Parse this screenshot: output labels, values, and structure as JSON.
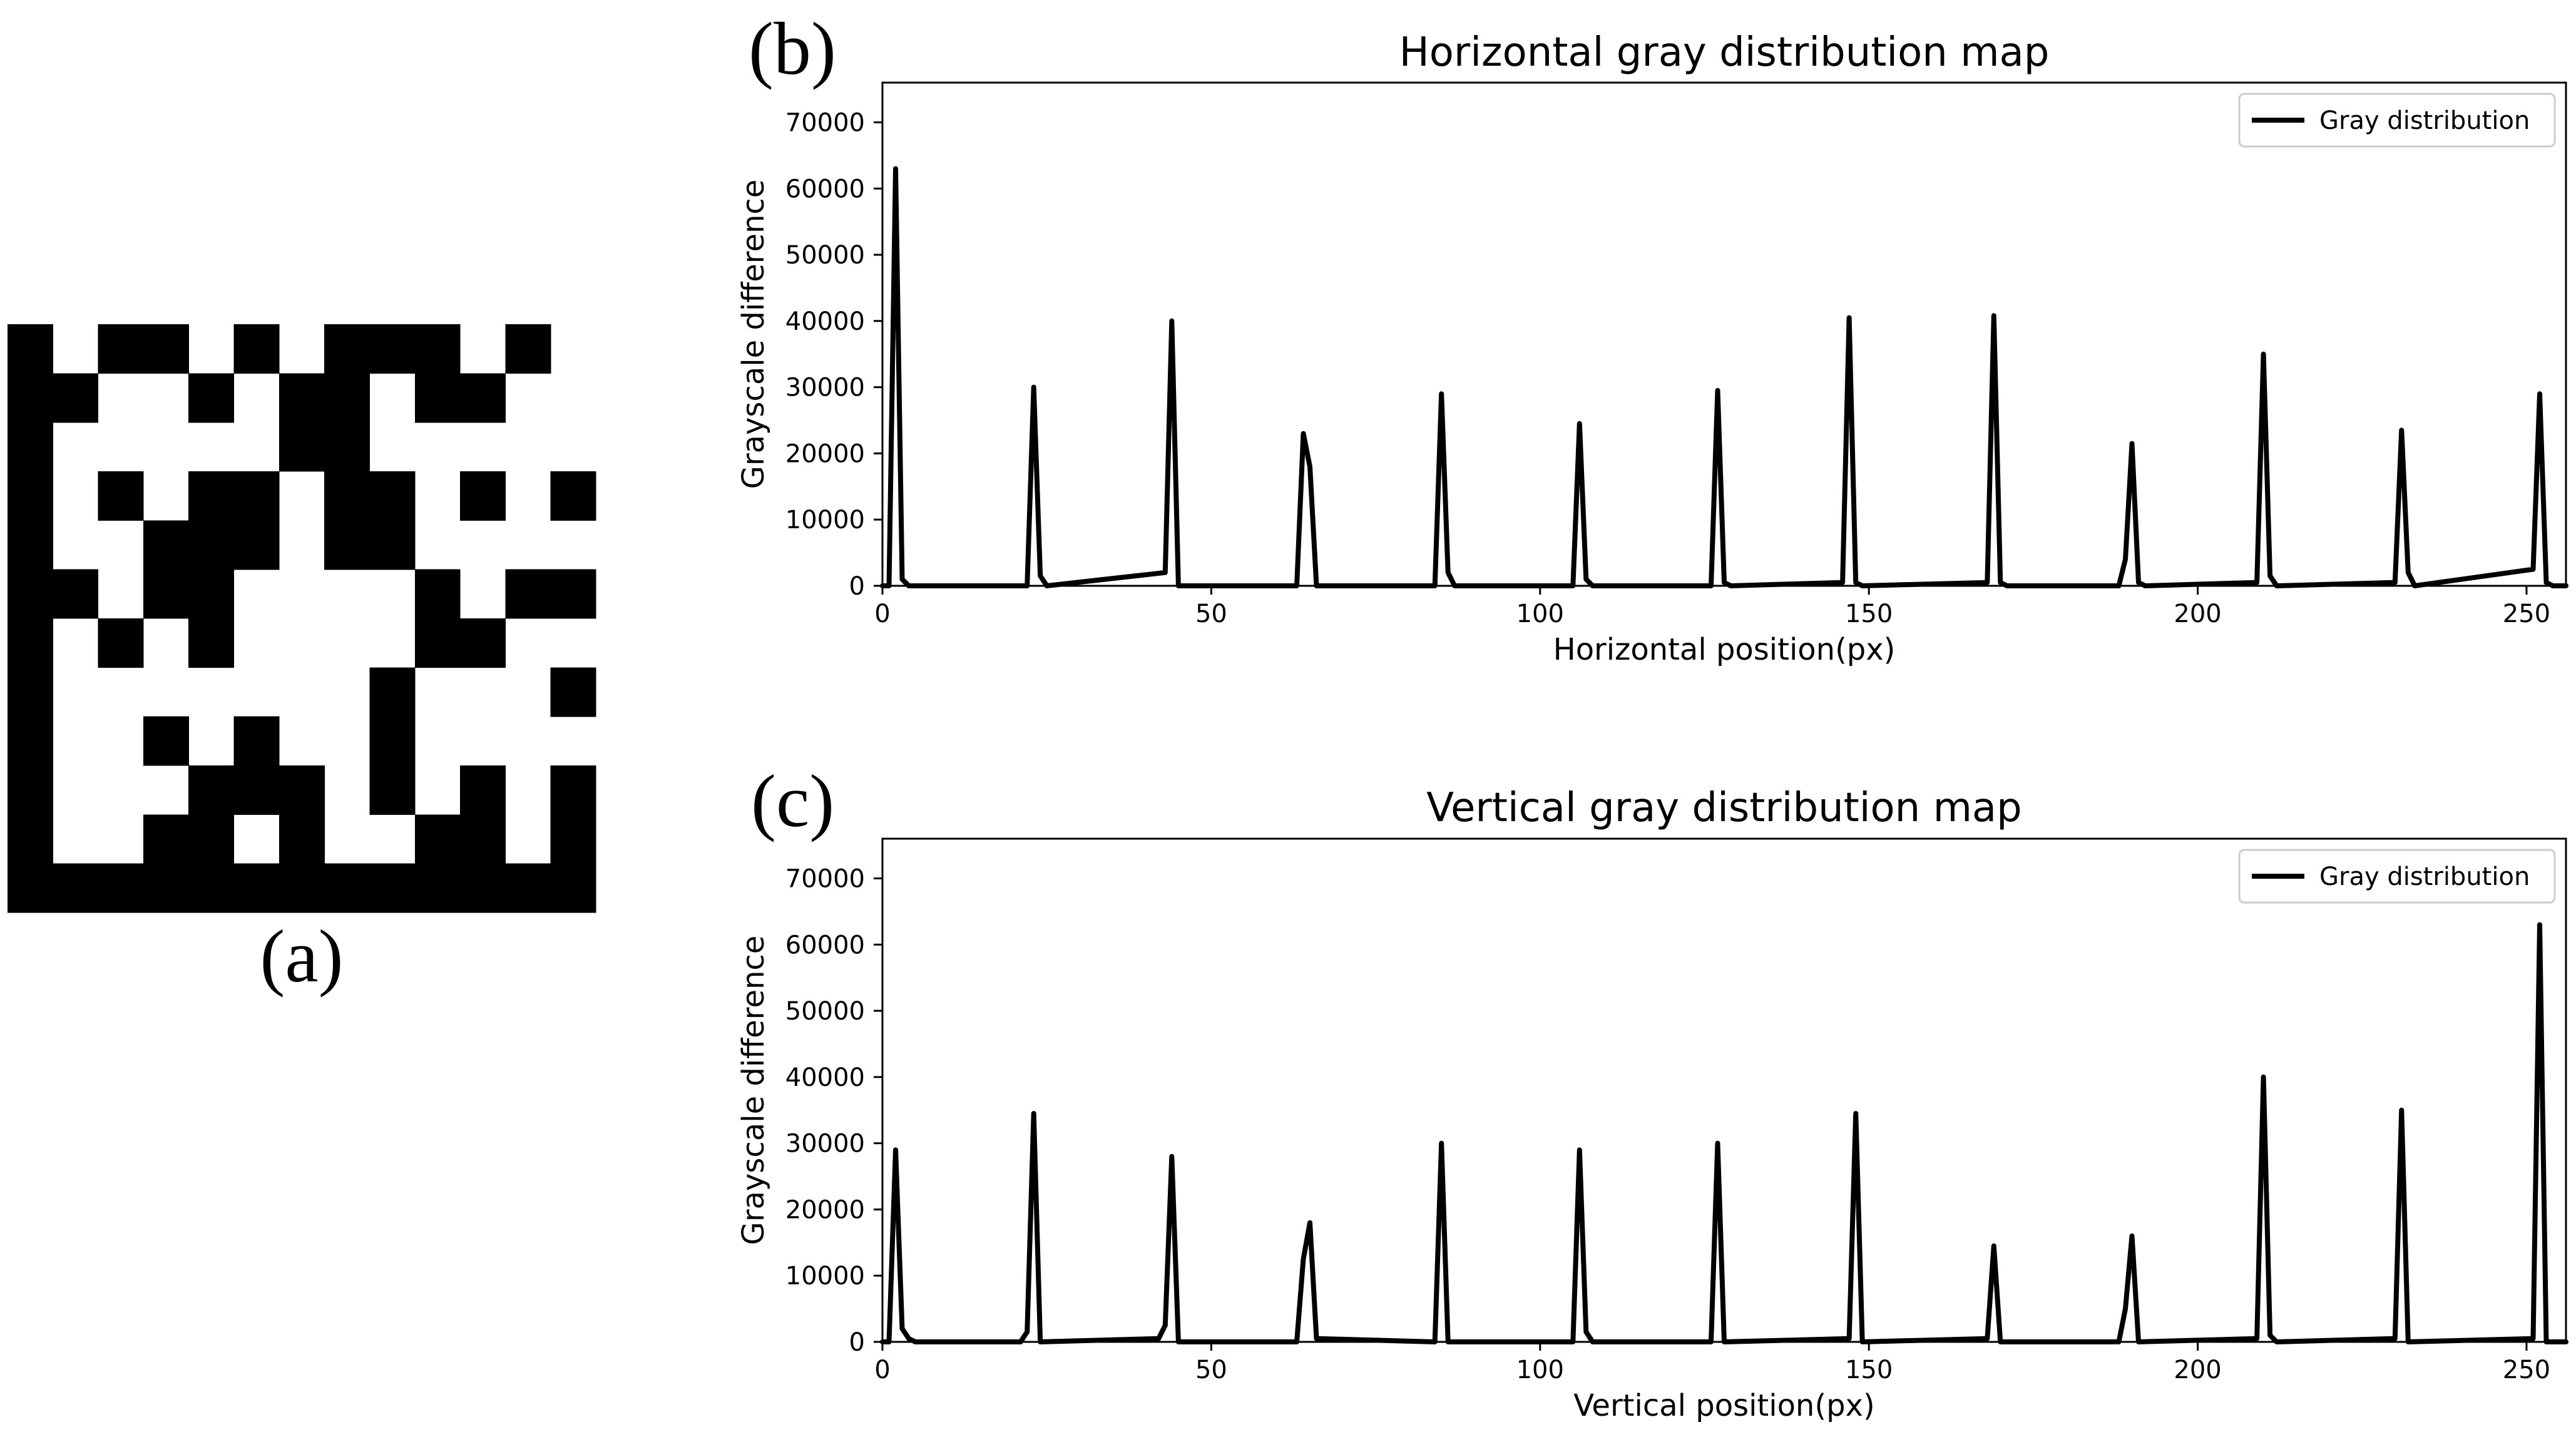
{
  "panels": {
    "a_label": "(a)",
    "b_label": "(b)",
    "c_label": "(c)"
  },
  "matrix_code": {
    "rows": [
      "1011010111010",
      "1100101101100",
      "1000001100000",
      "1010110110101",
      "1001110110000",
      "1101100001011",
      "1010100001100",
      "1000000010001",
      "1001010010000",
      "1000111010101",
      "1001101001101",
      "1111111111111"
    ]
  },
  "colors": {
    "ink": "#000000",
    "background": "#ffffff"
  },
  "chart_data": [
    {
      "type": "line",
      "title": "Horizontal gray distribution map",
      "xlabel": "Horizontal position(px)",
      "ylabel": "Grayscale difference",
      "xlim": [
        0,
        256
      ],
      "ylim": [
        0,
        76000
      ],
      "xticks": [
        0,
        50,
        100,
        150,
        200,
        250
      ],
      "yticks": [
        0,
        10000,
        20000,
        30000,
        40000,
        50000,
        60000,
        70000
      ],
      "grid": false,
      "legend_position": "top-right",
      "series": [
        {
          "name": "Gray distribution",
          "color": "#000000",
          "x": [
            0,
            1,
            2,
            3,
            4,
            22,
            23,
            24,
            25,
            43,
            44,
            45,
            46,
            63,
            64,
            65,
            66,
            84,
            85,
            86,
            87,
            105,
            106,
            107,
            108,
            126,
            127,
            128,
            129,
            146,
            147,
            148,
            149,
            168,
            169,
            170,
            171,
            188,
            189,
            190,
            191,
            192,
            209,
            210,
            211,
            212,
            230,
            231,
            232,
            233,
            251,
            252,
            253,
            254,
            256
          ],
          "y": [
            0,
            0,
            63000,
            1000,
            0,
            0,
            30000,
            1500,
            0,
            2000,
            40000,
            0,
            0,
            0,
            23000,
            18000,
            0,
            0,
            29000,
            2000,
            0,
            0,
            24500,
            1000,
            0,
            0,
            29500,
            500,
            0,
            500,
            40500,
            500,
            0,
            500,
            40800,
            500,
            0,
            0,
            4000,
            21500,
            500,
            0,
            500,
            35000,
            1500,
            0,
            500,
            23500,
            2000,
            0,
            2500,
            29000,
            500,
            0,
            0
          ]
        }
      ]
    },
    {
      "type": "line",
      "title": "Vertical gray distribution map",
      "xlabel": "Vertical position(px)",
      "ylabel": "Grayscale difference",
      "xlim": [
        0,
        256
      ],
      "ylim": [
        0,
        76000
      ],
      "xticks": [
        0,
        50,
        100,
        150,
        200,
        250
      ],
      "yticks": [
        0,
        10000,
        20000,
        30000,
        40000,
        50000,
        60000,
        70000
      ],
      "grid": false,
      "legend_position": "top-right",
      "series": [
        {
          "name": "Gray distribution",
          "color": "#000000",
          "x": [
            0,
            1,
            2,
            3,
            4,
            5,
            21,
            22,
            23,
            24,
            42,
            43,
            44,
            45,
            63,
            64,
            65,
            66,
            84,
            85,
            86,
            105,
            106,
            107,
            108,
            126,
            127,
            128,
            147,
            148,
            149,
            168,
            169,
            170,
            188,
            189,
            190,
            191,
            209,
            210,
            211,
            212,
            230,
            231,
            232,
            251,
            252,
            253,
            256
          ],
          "y": [
            0,
            0,
            29000,
            2000,
            500,
            0,
            0,
            1500,
            34500,
            0,
            500,
            2500,
            28000,
            0,
            0,
            12500,
            18000,
            500,
            0,
            30000,
            0,
            0,
            29000,
            1500,
            0,
            0,
            30000,
            0,
            500,
            34500,
            0,
            500,
            14500,
            0,
            0,
            5000,
            16000,
            0,
            500,
            40000,
            1000,
            0,
            500,
            35000,
            0,
            500,
            63000,
            0,
            0
          ]
        }
      ]
    }
  ]
}
